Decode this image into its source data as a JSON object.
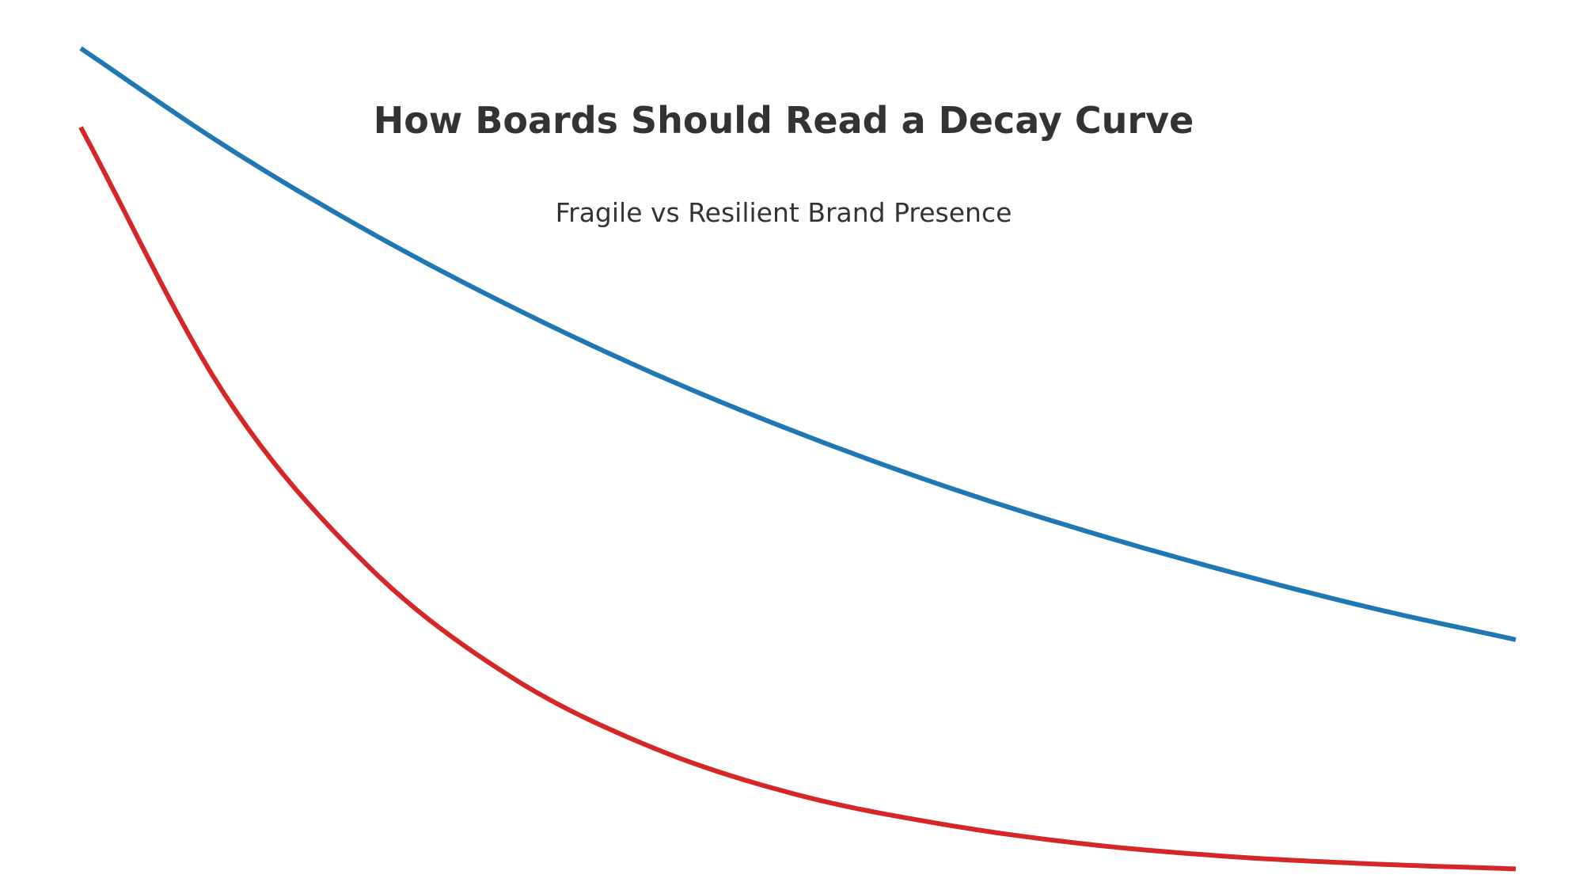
{
  "chart_data": {
    "type": "line",
    "title": "How Boards Should Read a Decay Curve",
    "subtitle": "Fragile vs Resilient Brand Presence",
    "xlabel": "",
    "ylabel": "",
    "grid": false,
    "axes_visible": false,
    "x_range": [
      0,
      50
    ],
    "y_range": [
      0,
      100
    ],
    "series": [
      {
        "color": "#1f77b4",
        "x": [
          0,
          5,
          10,
          15,
          20,
          25,
          30,
          35,
          40,
          45,
          50
        ],
        "y": [
          100,
          88.3,
          78.0,
          68.9,
          60.8,
          53.7,
          47.4,
          41.9,
          37.0,
          32.6,
          28.8
        ]
      },
      {
        "color": "#d62728",
        "x": [
          0,
          5,
          10,
          15,
          20,
          25,
          30,
          35,
          40,
          45,
          50
        ],
        "y": [
          90.5,
          58.4,
          37.7,
          24.3,
          15.7,
          10.1,
          6.6,
          4.2,
          2.7,
          1.8,
          1.2
        ]
      }
    ],
    "text_color": "#333333"
  }
}
